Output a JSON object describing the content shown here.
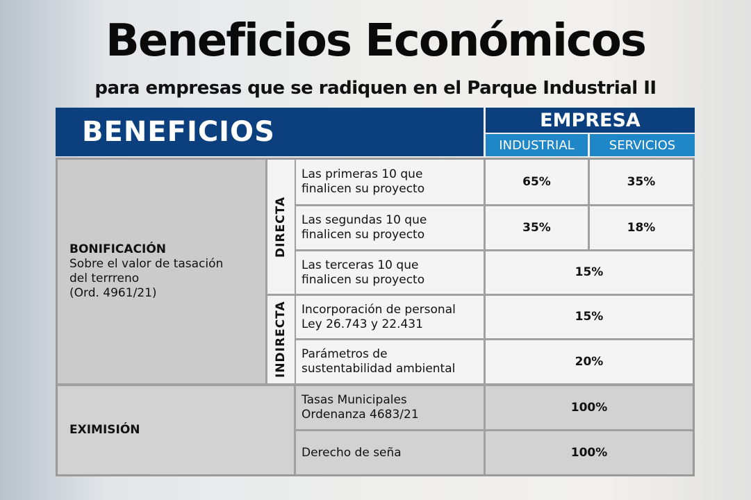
{
  "title": "Beneficios Económicos",
  "subtitle": "para empresas que se radiquen en el Parque Industrial II",
  "table": {
    "header": {
      "beneficios": "BENEFICIOS",
      "empresa": "EMPRESA",
      "industrial": "INDUSTRIAL",
      "servicios": "SERVICIOS"
    },
    "bonificacion": {
      "label": "BONIFICACIÓN",
      "description": [
        "Sobre el valor de tasación",
        "del terrreno",
        "(Ord. 4961/21)"
      ]
    },
    "directa": "DIRECTA",
    "indirecta": "INDIRECTA",
    "eximision": "EXIMISIÓN",
    "rows": [
      {
        "concept": [
          "Las primeras 10 que",
          "finalicen su proyecto"
        ],
        "industrial": "65%",
        "servicios": "35%"
      },
      {
        "concept": [
          "Las segundas 10 que",
          "finalicen su proyecto"
        ],
        "industrial": "35%",
        "servicios": "18%"
      },
      {
        "concept": [
          "Las terceras 10 que",
          "finalicen su proyecto"
        ],
        "both": "15%"
      },
      {
        "concept": [
          "Incorporación de personal",
          "Ley 26.743 y 22.431"
        ],
        "both": "15%"
      },
      {
        "concept": [
          "Parámetros de",
          "sustentabilidad ambiental"
        ],
        "both": "20%"
      },
      {
        "concept": [
          "Tasas Municipales",
          "Ordenanza 4683/21"
        ],
        "both": "100%"
      },
      {
        "concept": [
          "Derecho de seña"
        ],
        "both": "100%"
      }
    ]
  }
}
